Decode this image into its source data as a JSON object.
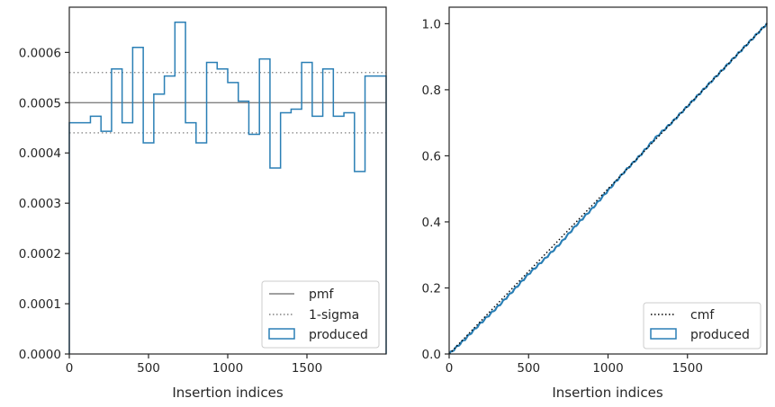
{
  "colors": {
    "hist": "#2a7fb5",
    "pmf": "#808080",
    "sigma": "#808080",
    "cmf": "#000000",
    "axes": "#262626"
  },
  "chart_data": [
    {
      "type": "histogram",
      "xlabel": "Insertion indices",
      "ylabel": "",
      "xlim": [
        0,
        2000
      ],
      "ylim": [
        0,
        0.00069
      ],
      "xticks": [
        0,
        500,
        1000,
        1500
      ],
      "yticks": [
        0,
        0.0001,
        0.0002,
        0.0003,
        0.0004,
        0.0005,
        0.0006
      ],
      "xtick_labels": [
        "0",
        "500",
        "1000",
        "1500"
      ],
      "ytick_labels": [
        "0.0000",
        "0.0001",
        "0.0002",
        "0.0003",
        "0.0004",
        "0.0005",
        "0.0006"
      ],
      "legend_position": "lower right",
      "legend": [
        "pmf",
        "1-sigma",
        "produced"
      ],
      "pmf": 0.0005,
      "sigma_band": [
        0.00044,
        0.00056
      ],
      "bin_width": 66.67,
      "produced": [
        0.00046,
        0.00046,
        0.000473,
        0.000443,
        0.000567,
        0.00046,
        0.00061,
        0.00042,
        0.000517,
        0.000553,
        0.00066,
        0.00046,
        0.00042,
        0.00058,
        0.000567,
        0.00054,
        0.000503,
        0.000437,
        0.000587,
        0.00037,
        0.00048,
        0.000487,
        0.00058,
        0.000473,
        0.000567,
        0.000473,
        0.00048,
        0.000363,
        0.000553,
        0.000553
      ]
    },
    {
      "type": "line",
      "xlabel": "Insertion indices",
      "ylabel": "",
      "xlim": [
        0,
        2000
      ],
      "ylim": [
        0,
        1.05
      ],
      "xticks": [
        0,
        500,
        1000,
        1500
      ],
      "yticks": [
        0,
        0.2,
        0.4,
        0.6,
        0.8,
        1.0
      ],
      "xtick_labels": [
        "0",
        "500",
        "1000",
        "1500"
      ],
      "ytick_labels": [
        "0.0",
        "0.2",
        "0.4",
        "0.6",
        "0.8",
        "1.0"
      ],
      "legend_position": "lower right",
      "legend": [
        "cmf",
        "produced"
      ],
      "cmf": {
        "x": [
          0,
          2000
        ],
        "y": [
          0,
          1.0
        ]
      },
      "produced": {
        "x": [
          0,
          100,
          200,
          300,
          400,
          500,
          600,
          700,
          800,
          900,
          1000,
          1100,
          1200,
          1300,
          1400,
          1500,
          1600,
          1700,
          1800,
          1900,
          2000
        ],
        "y": [
          0,
          0.045,
          0.094,
          0.14,
          0.19,
          0.242,
          0.287,
          0.335,
          0.39,
          0.44,
          0.495,
          0.55,
          0.6,
          0.655,
          0.7,
          0.75,
          0.8,
          0.85,
          0.9,
          0.95,
          1.0
        ]
      }
    }
  ]
}
